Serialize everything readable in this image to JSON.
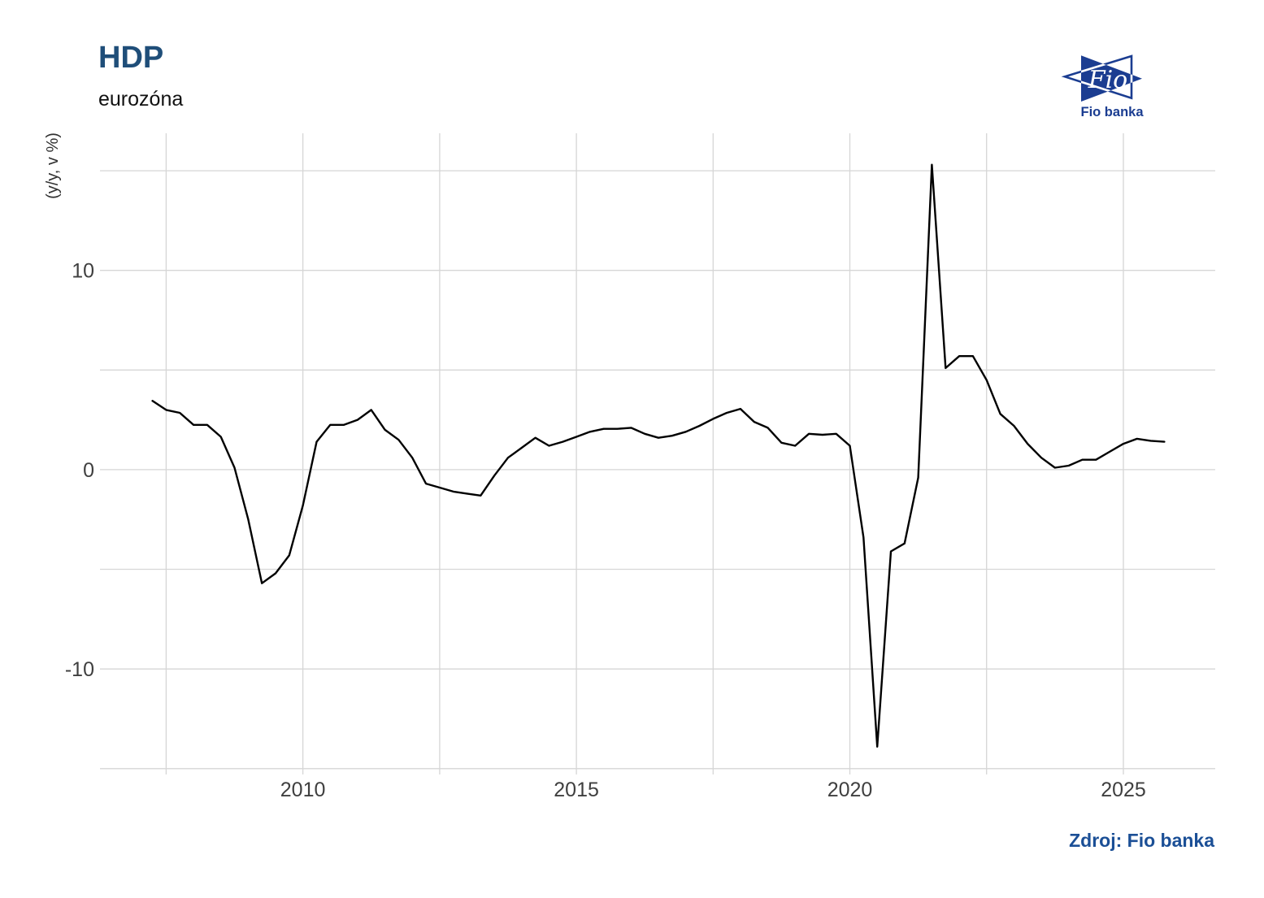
{
  "header": {
    "title": "HDP",
    "subtitle": "eurozóna"
  },
  "logo": {
    "flag_text": "Fio",
    "caption": "Fio banka",
    "color": "#1b3d91"
  },
  "footer": {
    "source_label": "Zdroj: Fio banka"
  },
  "chart_data": {
    "type": "line",
    "title": "HDP",
    "subtitle": "eurozóna",
    "ylabel": "(y/y, v %)",
    "x": [
      2007.25,
      2007.5,
      2007.75,
      2008.0,
      2008.25,
      2008.5,
      2008.75,
      2009.0,
      2009.25,
      2009.5,
      2009.75,
      2010.0,
      2010.25,
      2010.5,
      2010.75,
      2011.0,
      2011.25,
      2011.5,
      2011.75,
      2012.0,
      2012.25,
      2012.5,
      2012.75,
      2013.0,
      2013.25,
      2013.5,
      2013.75,
      2014.0,
      2014.25,
      2014.5,
      2014.75,
      2015.0,
      2015.25,
      2015.5,
      2015.75,
      2016.0,
      2016.25,
      2016.5,
      2016.75,
      2017.0,
      2017.25,
      2017.5,
      2017.75,
      2018.0,
      2018.25,
      2018.5,
      2018.75,
      2019.0,
      2019.25,
      2019.5,
      2019.75,
      2020.0,
      2020.25,
      2020.5,
      2020.75,
      2021.0,
      2021.25,
      2021.5,
      2021.75,
      2022.0,
      2022.25,
      2022.5,
      2022.75,
      2023.0,
      2023.25,
      2023.5,
      2023.75,
      2024.0,
      2024.25,
      2024.5,
      2024.75,
      2025.0,
      2025.25,
      2025.5,
      2025.75
    ],
    "values": [
      3.45,
      3.0,
      2.85,
      2.25,
      2.25,
      1.65,
      0.1,
      -2.5,
      -5.7,
      -5.2,
      -4.3,
      -1.8,
      1.4,
      2.25,
      2.25,
      2.5,
      3.0,
      2.0,
      1.5,
      0.6,
      -0.7,
      -0.9,
      -1.1,
      -1.2,
      -1.3,
      -0.3,
      0.6,
      1.1,
      1.6,
      1.2,
      1.4,
      1.65,
      1.9,
      2.05,
      2.05,
      2.1,
      1.8,
      1.6,
      1.7,
      1.9,
      2.2,
      2.55,
      2.85,
      3.05,
      2.4,
      2.1,
      1.35,
      1.2,
      1.8,
      1.75,
      1.8,
      1.2,
      -3.4,
      -13.9,
      -4.1,
      -3.7,
      -0.4,
      15.3,
      5.1,
      5.7,
      5.7,
      4.5,
      2.8,
      2.2,
      1.3,
      0.6,
      0.1,
      0.2,
      0.5,
      0.5,
      0.9,
      1.3,
      1.55,
      1.45,
      1.4
    ],
    "xlim": [
      2006.29,
      2026.68
    ],
    "ylim": [
      -15.05,
      16.88
    ],
    "x_gridlines": [
      2007.5,
      2010,
      2012.5,
      2015,
      2017.5,
      2020,
      2022.5,
      2025
    ],
    "y_gridlines": [
      15,
      10,
      5,
      0,
      -5,
      -10,
      -15
    ],
    "x_tick_labels": [
      "2010",
      "2015",
      "2020",
      "2025"
    ],
    "x_tick_positions": [
      2010,
      2015,
      2020,
      2025
    ],
    "y_tick_labels": [
      "10",
      "0",
      "-10"
    ],
    "y_tick_positions": [
      10,
      0,
      -10
    ],
    "grid": true,
    "legend": "none",
    "line_color": "#000000",
    "grid_color": "#d6d6d6",
    "tick_color": "#3f3f3f"
  }
}
